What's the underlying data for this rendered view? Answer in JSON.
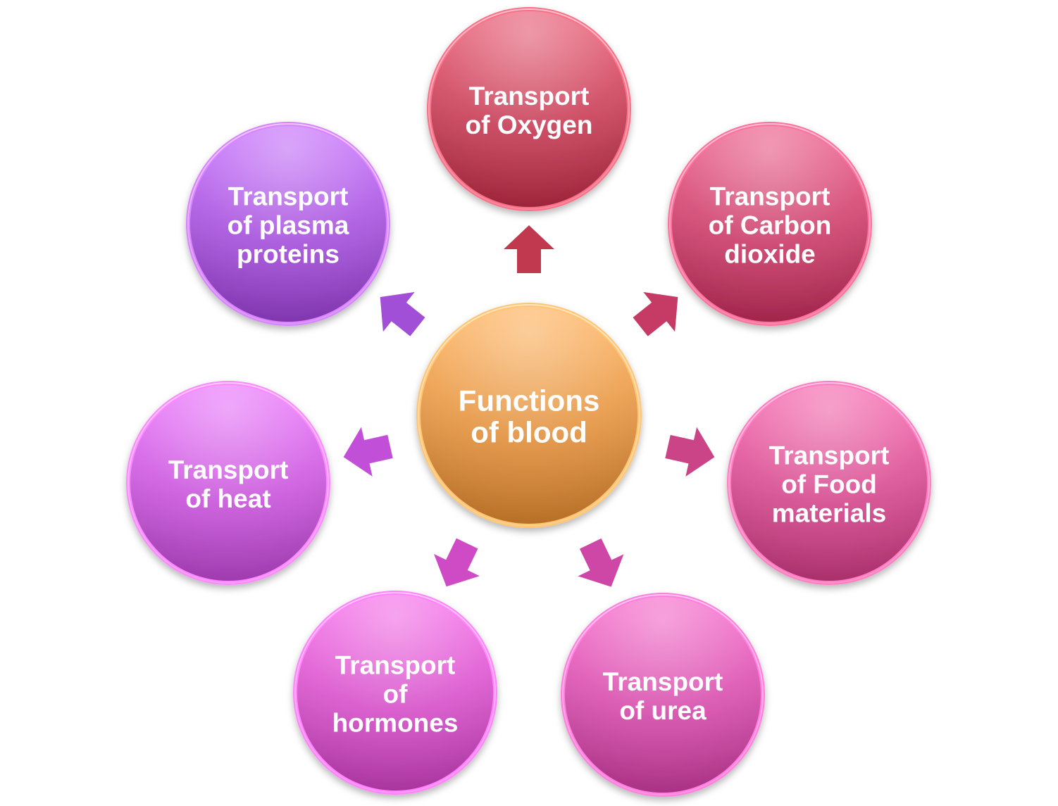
{
  "center": {
    "lines": [
      "Functions",
      "of blood"
    ],
    "color": "#e08e3c"
  },
  "satellites": [
    {
      "id": "oxygen",
      "lines": [
        "Transport",
        "of Oxygen"
      ],
      "color": "#c23a52"
    },
    {
      "id": "carbon-dioxide",
      "lines": [
        "Transport",
        "of Carbon",
        "dioxide"
      ],
      "color": "#c63a66"
    },
    {
      "id": "food-materials",
      "lines": [
        "Transport",
        "of Food",
        "materials"
      ],
      "color": "#d0468a"
    },
    {
      "id": "urea",
      "lines": [
        "Transport",
        "of urea"
      ],
      "color": "#d048a6"
    },
    {
      "id": "hormones",
      "lines": [
        "Transport",
        "of",
        "hormones"
      ],
      "color": "#d04cc4"
    },
    {
      "id": "heat",
      "lines": [
        "Transport",
        "of heat"
      ],
      "color": "#c452d6"
    },
    {
      "id": "plasma-proteins",
      "lines": [
        "Transport",
        "of plasma",
        "proteins"
      ],
      "color": "#a14dd6"
    }
  ],
  "arrow_colors": [
    "#c0394f",
    "#c63a66",
    "#cc4488",
    "#cf47a6",
    "#cf4bc6",
    "#c24fd8",
    "#a24fd8"
  ]
}
